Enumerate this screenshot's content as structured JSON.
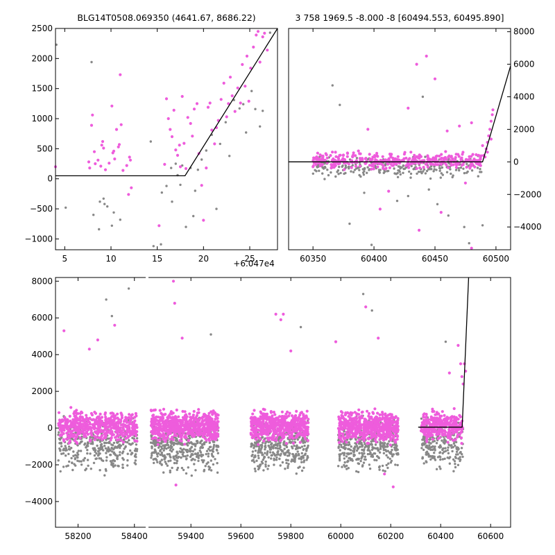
{
  "chart_data": [
    {
      "id": "top-left",
      "type": "scatter",
      "title": "BLG14T0508.069350 (4641.67, 8686.22)",
      "offset_label": "+6.047e4",
      "xlim": [
        4,
        28
      ],
      "ylim": [
        -1180,
        2500
      ],
      "x_ticks": [
        5,
        10,
        15,
        20,
        25
      ],
      "x_tick_labels": [
        "5",
        "10",
        "15",
        "20",
        "25"
      ],
      "y_ticks": [
        -1000,
        -500,
        0,
        500,
        1000,
        1500,
        2000,
        2500
      ],
      "y_tick_labels": [
        "−1000",
        "−500",
        "0",
        "500",
        "1000",
        "1500",
        "2000",
        "2500"
      ],
      "y_axis_side": "left",
      "grid": false,
      "model_line": [
        [
          4,
          50
        ],
        [
          18,
          50
        ],
        [
          28,
          2500
        ]
      ],
      "series": [
        {
          "color": "#888888",
          "points": [
            [
              4.1,
              2230
            ],
            [
              5.1,
              -480
            ],
            [
              7.9,
              1940
            ],
            [
              8.1,
              -600
            ],
            [
              8.7,
              -840
            ],
            [
              8.8,
              -380
            ],
            [
              9.2,
              -330
            ],
            [
              9.3,
              -420
            ],
            [
              9.6,
              -460
            ],
            [
              10.1,
              -780
            ],
            [
              10.3,
              -560
            ],
            [
              11.0,
              -680
            ],
            [
              14.3,
              620
            ],
            [
              14.6,
              -1120
            ],
            [
              15.4,
              -1090
            ],
            [
              15.5,
              -230
            ],
            [
              16.0,
              -120
            ],
            [
              16.5,
              180
            ],
            [
              16.6,
              -380
            ],
            [
              17.0,
              250
            ],
            [
              17.2,
              60
            ],
            [
              17.5,
              -100
            ],
            [
              17.7,
              220
            ],
            [
              18.1,
              -800
            ],
            [
              18.6,
              180
            ],
            [
              18.9,
              -620
            ],
            [
              19.1,
              -200
            ],
            [
              19.4,
              150
            ],
            [
              19.8,
              320
            ],
            [
              20.3,
              470
            ],
            [
              20.9,
              730
            ],
            [
              21.4,
              -500
            ],
            [
              21.8,
              580
            ],
            [
              22.4,
              940
            ],
            [
              22.8,
              380
            ],
            [
              23.3,
              1310
            ],
            [
              23.9,
              1170
            ],
            [
              24.3,
              1240
            ],
            [
              24.6,
              770
            ],
            [
              25.2,
              1460
            ],
            [
              25.6,
              1160
            ],
            [
              26.1,
              870
            ],
            [
              26.4,
              1130
            ],
            [
              27.2,
              2430
            ]
          ]
        },
        {
          "color": "#ee5cdc",
          "points": [
            [
              4.0,
              200
            ],
            [
              7.6,
              280
            ],
            [
              7.7,
              180
            ],
            [
              7.9,
              890
            ],
            [
              8.0,
              1060
            ],
            [
              8.2,
              450
            ],
            [
              8.3,
              250
            ],
            [
              8.6,
              310
            ],
            [
              8.9,
              210
            ],
            [
              9.0,
              560
            ],
            [
              9.1,
              620
            ],
            [
              9.2,
              510
            ],
            [
              9.4,
              150
            ],
            [
              9.8,
              260
            ],
            [
              10.1,
              1210
            ],
            [
              10.2,
              430
            ],
            [
              10.3,
              460
            ],
            [
              10.4,
              330
            ],
            [
              10.6,
              820
            ],
            [
              10.8,
              530
            ],
            [
              10.9,
              570
            ],
            [
              11.0,
              1730
            ],
            [
              11.1,
              900
            ],
            [
              11.3,
              140
            ],
            [
              11.7,
              220
            ],
            [
              11.9,
              -260
            ],
            [
              12.0,
              360
            ],
            [
              12.1,
              310
            ],
            [
              12.2,
              -150
            ],
            [
              15.2,
              -780
            ],
            [
              15.8,
              240
            ],
            [
              16.0,
              1330
            ],
            [
              16.2,
              1000
            ],
            [
              16.4,
              820
            ],
            [
              16.6,
              700
            ],
            [
              16.8,
              1140
            ],
            [
              17.0,
              480
            ],
            [
              17.2,
              390
            ],
            [
              17.4,
              560
            ],
            [
              17.5,
              200
            ],
            [
              17.7,
              1370
            ],
            [
              17.9,
              590
            ],
            [
              18.1,
              170
            ],
            [
              18.3,
              1020
            ],
            [
              18.6,
              920
            ],
            [
              18.8,
              710
            ],
            [
              19.0,
              1160
            ],
            [
              19.3,
              1250
            ],
            [
              19.5,
              420
            ],
            [
              19.8,
              -110
            ],
            [
              20.0,
              -690
            ],
            [
              20.3,
              180
            ],
            [
              20.5,
              1190
            ],
            [
              20.7,
              1260
            ],
            [
              20.9,
              810
            ],
            [
              21.2,
              580
            ],
            [
              21.4,
              850
            ],
            [
              21.6,
              970
            ],
            [
              21.9,
              1320
            ],
            [
              22.2,
              1590
            ],
            [
              22.5,
              1030
            ],
            [
              22.7,
              1250
            ],
            [
              22.9,
              1690
            ],
            [
              23.1,
              1380
            ],
            [
              23.4,
              1120
            ],
            [
              23.7,
              1510
            ],
            [
              24.0,
              1260
            ],
            [
              24.2,
              1900
            ],
            [
              24.5,
              1540
            ],
            [
              24.7,
              2040
            ],
            [
              24.9,
              1290
            ],
            [
              25.1,
              1840
            ],
            [
              25.4,
              2190
            ],
            [
              25.7,
              2390
            ],
            [
              25.9,
              2450
            ],
            [
              26.1,
              1940
            ],
            [
              26.4,
              2360
            ],
            [
              26.6,
              2420
            ],
            [
              26.9,
              2140
            ]
          ]
        }
      ]
    },
    {
      "id": "top-right",
      "type": "scatter",
      "title": "3 758 1969.5 -8.000 -8 [60494.553, 60495.890]",
      "xlim": [
        60330,
        60512
      ],
      "ylim": [
        -5400,
        8200
      ],
      "x_ticks": [
        60350,
        60400,
        60450,
        60500
      ],
      "x_tick_labels": [
        "60350",
        "60400",
        "60450",
        "60500"
      ],
      "y_ticks": [
        -4000,
        -2000,
        0,
        2000,
        4000,
        6000,
        8000
      ],
      "y_tick_labels": [
        "−4000",
        "−2000",
        "0",
        "2000",
        "4000",
        "6000",
        "8000"
      ],
      "y_axis_side": "right",
      "grid": false,
      "model_line": [
        [
          60330,
          0
        ],
        [
          60489,
          0
        ],
        [
          60512,
          5900
        ]
      ],
      "series": [
        {
          "color": "#888888",
          "band": {
            "x": [
              60350,
              60488
            ],
            "y": [
              -1100,
              400
            ],
            "n": 280,
            "seed": 11
          },
          "points": [
            [
              60366,
              4700
            ],
            [
              60372,
              3500
            ],
            [
              60380,
              -3800
            ],
            [
              60398,
              -5100
            ],
            [
              60419,
              -2400
            ],
            [
              60440,
              4000
            ],
            [
              60452,
              -2600
            ],
            [
              60461,
              -3300
            ],
            [
              60474,
              -4000
            ],
            [
              60478,
              -5000
            ],
            [
              60489,
              -3900
            ],
            [
              60392,
              -1900
            ],
            [
              60428,
              -2100
            ],
            [
              60445,
              -1700
            ]
          ]
        },
        {
          "color": "#ee5cdc",
          "band": {
            "x": [
              60350,
              60488
            ],
            "y": [
              -500,
              700
            ],
            "n": 360,
            "seed": 7
          },
          "points": [
            [
              60443,
              6500
            ],
            [
              60450,
              5100
            ],
            [
              60435,
              6000
            ],
            [
              60428,
              3300
            ],
            [
              60395,
              2000
            ],
            [
              60405,
              -2900
            ],
            [
              60437,
              -4200
            ],
            [
              60455,
              -3100
            ],
            [
              60470,
              2200
            ],
            [
              60480,
              2400
            ],
            [
              60475,
              -1300
            ],
            [
              60460,
              1900
            ],
            [
              60412,
              -1800
            ],
            [
              60480,
              -5300
            ],
            [
              60490,
              400
            ],
            [
              60492,
              800
            ],
            [
              60493,
              1200
            ],
            [
              60494,
              1600
            ],
            [
              60495,
              2000
            ],
            [
              60496,
              2500
            ],
            [
              60497,
              2900
            ],
            [
              60497.5,
              3200
            ],
            [
              60491,
              300
            ],
            [
              60493,
              600
            ],
            [
              60489,
              1000
            ],
            [
              60496,
              1400
            ]
          ]
        }
      ]
    },
    {
      "id": "bottom",
      "type": "scatter",
      "title": "",
      "segments": [
        {
          "xlim": [
            58120,
            58440
          ],
          "x_ticks": [
            58200,
            58400
          ],
          "x_tick_labels": [
            "58200",
            "58400"
          ]
        },
        {
          "xlim": [
            59230,
            60680
          ],
          "x_ticks": [
            59400,
            59600,
            59800,
            60000,
            60200,
            60400,
            60600
          ],
          "x_tick_labels": [
            "59400",
            "59600",
            "59800",
            "60000",
            "60200",
            "60400",
            "60600"
          ]
        }
      ],
      "ylim": [
        -5400,
        8200
      ],
      "y_ticks": [
        -4000,
        -2000,
        0,
        2000,
        4000,
        6000,
        8000
      ],
      "y_tick_labels": [
        "−4000",
        "−2000",
        "0",
        "2000",
        "4000",
        "6000",
        "8000"
      ],
      "y_axis_side": "left",
      "grid": false,
      "model_line": [
        [
          60310,
          50
        ],
        [
          60486,
          50
        ],
        [
          60512,
          8200
        ]
      ],
      "series": [
        {
          "color": "#888888",
          "clusters": [
            {
              "x": [
                58130,
                58410
              ],
              "n": 360,
              "seed": 21
            },
            {
              "x": [
                59240,
                59510
              ],
              "n": 420,
              "seed": 22
            },
            {
              "x": [
                59640,
                59870
              ],
              "n": 380,
              "seed": 23
            },
            {
              "x": [
                59990,
                60230
              ],
              "n": 380,
              "seed": 24
            },
            {
              "x": [
                60320,
                60490
              ],
              "n": 220,
              "seed": 25
            }
          ],
          "band_y": [
            -2800,
            900
          ],
          "points": [
            [
              58320,
              6100
            ],
            [
              58300,
              7000
            ],
            [
              58380,
              7600
            ],
            [
              59480,
              5100
            ],
            [
              59840,
              5500
            ],
            [
              60090,
              7300
            ],
            [
              60125,
              6400
            ],
            [
              60420,
              4700
            ]
          ]
        },
        {
          "color": "#ee5cdc",
          "clusters": [
            {
              "x": [
                58130,
                58410
              ],
              "n": 520,
              "seed": 31
            },
            {
              "x": [
                59240,
                59510
              ],
              "n": 620,
              "seed": 32
            },
            {
              "x": [
                59640,
                59870
              ],
              "n": 560,
              "seed": 33
            },
            {
              "x": [
                59990,
                60230
              ],
              "n": 560,
              "seed": 34
            },
            {
              "x": [
                60320,
                60490
              ],
              "n": 300,
              "seed": 35
            }
          ],
          "band_y": [
            -1000,
            1200
          ],
          "points": [
            [
              58150,
              5300
            ],
            [
              58270,
              4800
            ],
            [
              58330,
              5600
            ],
            [
              58240,
              4300
            ],
            [
              59330,
              8000
            ],
            [
              59335,
              6800
            ],
            [
              59365,
              4900
            ],
            [
              59760,
              5900
            ],
            [
              59740,
              6200
            ],
            [
              59770,
              6200
            ],
            [
              59800,
              4200
            ],
            [
              59980,
              4700
            ],
            [
              60100,
              6600
            ],
            [
              60150,
              4900
            ],
            [
              60435,
              3000
            ],
            [
              60470,
              4500
            ],
            [
              60480,
              3500
            ],
            [
              60485,
              2800
            ],
            [
              60490,
              2400
            ],
            [
              60500,
              3100
            ],
            [
              60495,
              3500
            ],
            [
              60175,
              -2500
            ],
            [
              60210,
              -3200
            ],
            [
              59340,
              -3100
            ]
          ]
        }
      ]
    }
  ]
}
